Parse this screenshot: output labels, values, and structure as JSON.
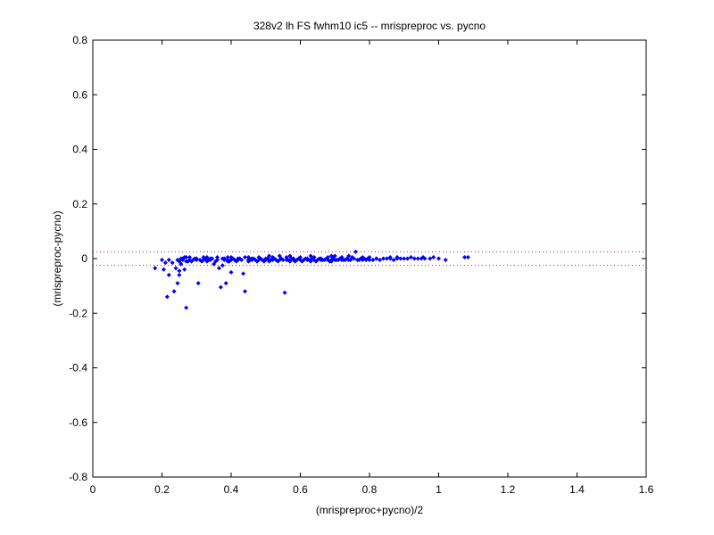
{
  "chart_data": {
    "type": "scatter",
    "title": "328v2 lh FS fwhm10 ic5 -- mrispreproc vs. pycno",
    "xlabel": "(mrispreproc+pycno)/2",
    "ylabel": "(mrispreproc-pycno)",
    "xlim": [
      0,
      1.6
    ],
    "ylim": [
      -0.8,
      0.8
    ],
    "xticks": [
      0,
      0.2,
      0.4,
      0.6,
      0.8,
      1,
      1.2,
      1.4,
      1.6
    ],
    "yticks": [
      -0.8,
      -0.6,
      -0.4,
      -0.2,
      0,
      0.2,
      0.4,
      0.6,
      0.8
    ],
    "xtick_labels": [
      "0",
      "0.2",
      "0.4",
      "0.6",
      "0.8",
      "1",
      "1.2",
      "1.4",
      "1.6"
    ],
    "ytick_labels": [
      "-0.8",
      "-0.6",
      "-0.4",
      "-0.2",
      "0",
      "0.2",
      "0.4",
      "0.6",
      "0.8"
    ],
    "grid": false,
    "reference_lines": [
      0.025,
      -0.025
    ],
    "marker_color": "#0000ff",
    "reference_line_color": "#ff0000",
    "points": [
      [
        0.18,
        -0.035
      ],
      [
        0.2,
        -0.005
      ],
      [
        0.205,
        -0.04
      ],
      [
        0.21,
        -0.015
      ],
      [
        0.215,
        -0.14
      ],
      [
        0.22,
        -0.06
      ],
      [
        0.22,
        -0.005
      ],
      [
        0.23,
        -0.015
      ],
      [
        0.235,
        -0.12
      ],
      [
        0.24,
        -0.035
      ],
      [
        0.245,
        -0.09
      ],
      [
        0.25,
        -0.06
      ],
      [
        0.25,
        -0.045
      ],
      [
        0.25,
        -0.01
      ],
      [
        0.255,
        -0.02
      ],
      [
        0.26,
        -0.005
      ],
      [
        0.265,
        -0.04
      ],
      [
        0.27,
        -0.18
      ],
      [
        0.275,
        -0.01
      ],
      [
        0.28,
        -0.005
      ],
      [
        0.29,
        -0.005
      ],
      [
        0.3,
        -0.005
      ],
      [
        0.305,
        -0.09
      ],
      [
        0.31,
        -0.005
      ],
      [
        0.32,
        -0.005
      ],
      [
        0.33,
        -0.005
      ],
      [
        0.34,
        -0.005
      ],
      [
        0.35,
        -0.02
      ],
      [
        0.36,
        -0.005
      ],
      [
        0.365,
        -0.035
      ],
      [
        0.37,
        -0.105
      ],
      [
        0.375,
        -0.025
      ],
      [
        0.38,
        -0.005
      ],
      [
        0.385,
        -0.09
      ],
      [
        0.39,
        -0.005
      ],
      [
        0.4,
        -0.005
      ],
      [
        0.4,
        -0.05
      ],
      [
        0.41,
        -0.005
      ],
      [
        0.42,
        -0.005
      ],
      [
        0.43,
        -0.005
      ],
      [
        0.435,
        -0.055
      ],
      [
        0.44,
        -0.12
      ],
      [
        0.45,
        -0.005
      ],
      [
        0.46,
        -0.005
      ],
      [
        0.47,
        -0.005
      ],
      [
        0.48,
        -0.005
      ],
      [
        0.49,
        -0.005
      ],
      [
        0.5,
        -0.005
      ],
      [
        0.51,
        -0.005
      ],
      [
        0.52,
        -0.005
      ],
      [
        0.53,
        -0.005
      ],
      [
        0.54,
        -0.005
      ],
      [
        0.55,
        -0.005
      ],
      [
        0.555,
        -0.125
      ],
      [
        0.56,
        -0.005
      ],
      [
        0.57,
        -0.005
      ],
      [
        0.58,
        -0.005
      ],
      [
        0.59,
        -0.005
      ],
      [
        0.6,
        -0.005
      ],
      [
        0.61,
        -0.005
      ],
      [
        0.62,
        -0.005
      ],
      [
        0.63,
        -0.005
      ],
      [
        0.64,
        -0.005
      ],
      [
        0.65,
        -0.005
      ],
      [
        0.66,
        -0.005
      ],
      [
        0.67,
        -0.005
      ],
      [
        0.68,
        -0.005
      ],
      [
        0.69,
        -0.005
      ],
      [
        0.7,
        -0.005
      ],
      [
        0.71,
        -0.005
      ],
      [
        0.72,
        -0.005
      ],
      [
        0.73,
        -0.005
      ],
      [
        0.74,
        -0.005
      ],
      [
        0.75,
        0.005
      ],
      [
        0.76,
        0.025
      ],
      [
        0.77,
        -0.005
      ],
      [
        0.78,
        -0.005
      ],
      [
        0.79,
        -0.005
      ],
      [
        0.8,
        -0.005
      ],
      [
        0.82,
        0.0
      ],
      [
        0.84,
        0.0
      ],
      [
        0.86,
        0.005
      ],
      [
        0.88,
        0.005
      ],
      [
        0.9,
        0.0
      ],
      [
        0.92,
        0.005
      ],
      [
        0.94,
        0.0
      ],
      [
        0.955,
        0.005
      ],
      [
        0.975,
        0.0
      ],
      [
        1.0,
        0.0
      ],
      [
        1.02,
        -0.005
      ],
      [
        1.075,
        0.005
      ],
      [
        1.085,
        0.005
      ],
      [
        0.26,
        0.0
      ],
      [
        0.28,
        0.005
      ],
      [
        0.3,
        0.0
      ],
      [
        0.32,
        0.005
      ],
      [
        0.34,
        0.0
      ],
      [
        0.36,
        0.005
      ],
      [
        0.38,
        0.0
      ],
      [
        0.4,
        0.005
      ],
      [
        0.42,
        0.0
      ],
      [
        0.44,
        0.005
      ],
      [
        0.46,
        0.0
      ],
      [
        0.48,
        0.005
      ],
      [
        0.5,
        0.0
      ],
      [
        0.52,
        0.005
      ],
      [
        0.54,
        0.01
      ],
      [
        0.56,
        0.005
      ],
      [
        0.58,
        0.0
      ],
      [
        0.6,
        0.005
      ],
      [
        0.62,
        0.0
      ],
      [
        0.64,
        0.005
      ],
      [
        0.66,
        0.0
      ],
      [
        0.68,
        0.005
      ],
      [
        0.7,
        0.01
      ],
      [
        0.72,
        0.005
      ],
      [
        0.74,
        0.01
      ],
      [
        0.78,
        0.005
      ],
      [
        0.8,
        0.005
      ],
      [
        0.82,
        0.0
      ],
      [
        0.86,
        0.0
      ],
      [
        0.88,
        0.0
      ],
      [
        0.91,
        0.0
      ],
      [
        0.95,
        0.0
      ],
      [
        0.27,
        0.005
      ],
      [
        0.33,
        0.005
      ],
      [
        0.39,
        0.005
      ],
      [
        0.45,
        0.005
      ],
      [
        0.51,
        0.01
      ],
      [
        0.57,
        0.01
      ],
      [
        0.63,
        0.01
      ],
      [
        0.69,
        0.01
      ],
      [
        0.27,
        -0.01
      ],
      [
        0.33,
        -0.01
      ],
      [
        0.39,
        -0.01
      ],
      [
        0.45,
        -0.01
      ],
      [
        0.51,
        -0.01
      ],
      [
        0.57,
        -0.01
      ],
      [
        0.63,
        -0.01
      ],
      [
        0.69,
        -0.01
      ],
      [
        0.245,
        -0.005
      ],
      [
        0.255,
        0.0
      ],
      [
        0.265,
        0.005
      ],
      [
        0.285,
        -0.01
      ],
      [
        0.295,
        0.0
      ],
      [
        0.315,
        -0.01
      ],
      [
        0.325,
        0.0
      ],
      [
        0.335,
        -0.005
      ],
      [
        0.345,
        0.0
      ],
      [
        0.355,
        -0.01
      ],
      [
        0.375,
        0.0
      ],
      [
        0.395,
        -0.01
      ],
      [
        0.405,
        0.0
      ],
      [
        0.415,
        -0.01
      ],
      [
        0.425,
        0.0
      ],
      [
        0.455,
        -0.005
      ],
      [
        0.465,
        0.0
      ],
      [
        0.475,
        -0.01
      ],
      [
        0.485,
        0.0
      ],
      [
        0.495,
        -0.01
      ],
      [
        0.505,
        0.0
      ],
      [
        0.515,
        -0.005
      ],
      [
        0.525,
        0.0
      ],
      [
        0.535,
        -0.01
      ],
      [
        0.545,
        0.0
      ],
      [
        0.565,
        -0.005
      ],
      [
        0.575,
        0.0
      ],
      [
        0.585,
        -0.01
      ],
      [
        0.595,
        0.0
      ],
      [
        0.605,
        -0.01
      ],
      [
        0.615,
        0.0
      ],
      [
        0.625,
        -0.005
      ],
      [
        0.635,
        0.0
      ],
      [
        0.645,
        -0.01
      ],
      [
        0.655,
        0.0
      ],
      [
        0.665,
        -0.005
      ],
      [
        0.675,
        0.0
      ],
      [
        0.685,
        -0.01
      ],
      [
        0.695,
        0.0
      ],
      [
        0.705,
        -0.005
      ],
      [
        0.715,
        0.0
      ],
      [
        0.725,
        -0.005
      ],
      [
        0.735,
        0.0
      ],
      [
        0.745,
        -0.005
      ],
      [
        0.755,
        0.0
      ],
      [
        0.765,
        -0.005
      ],
      [
        0.775,
        0.0
      ],
      [
        0.785,
        0.0
      ],
      [
        0.795,
        0.0
      ],
      [
        0.81,
        -0.005
      ],
      [
        0.83,
        -0.005
      ],
      [
        0.85,
        0.0
      ],
      [
        0.87,
        -0.005
      ],
      [
        0.89,
        0.0
      ],
      [
        0.93,
        0.0
      ],
      [
        0.96,
        0.0
      ],
      [
        0.985,
        0.005
      ]
    ]
  }
}
